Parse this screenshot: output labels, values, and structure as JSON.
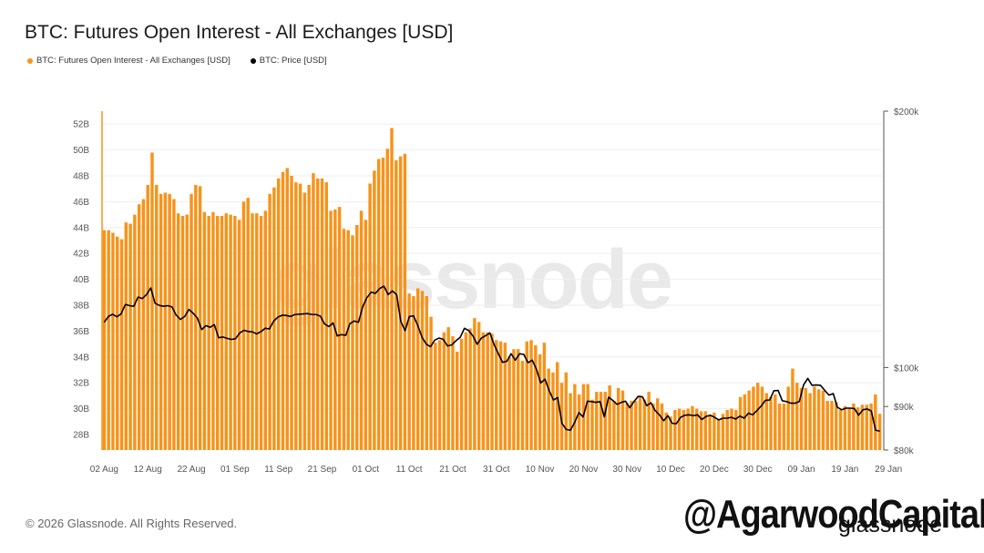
{
  "title": "BTC: Futures Open Interest - All Exchanges [USD]",
  "legend": {
    "oi_label": "BTC: Futures Open Interest - All Exchanges [USD]",
    "price_label": "BTC: Price [USD]"
  },
  "colors": {
    "oi": "#F7931A",
    "price": "#000000",
    "grid": "#eeeeee"
  },
  "footer": {
    "copyright": "© 2026 Glassnode. All Rights Reserved."
  },
  "watermark": "glassnode",
  "handle": "@AgarwoodCapital",
  "brand": "glassnode",
  "chart_data": {
    "type": "bar",
    "title": "BTC: Futures Open Interest - All Exchanges [USD]",
    "xlabel": "",
    "ylabel": "",
    "x_tick_labels": [
      "02 Aug",
      "12 Aug",
      "22 Aug",
      "01 Sep",
      "11 Sep",
      "21 Sep",
      "01 Oct",
      "11 Oct",
      "21 Oct",
      "31 Oct",
      "10 Nov",
      "20 Nov",
      "30 Nov",
      "10 Dec",
      "20 Dec",
      "30 Dec",
      "09 Jan",
      "19 Jan",
      "29 Jan"
    ],
    "y_left_ticks": [
      "28B",
      "30B",
      "32B",
      "34B",
      "36B",
      "38B",
      "40B",
      "42B",
      "44B",
      "46B",
      "48B",
      "50B",
      "52B"
    ],
    "y_right_ticks": [
      "$80k",
      "$90k",
      "$100k",
      "$200k"
    ],
    "ylim_left": [
      26.8,
      53.0
    ],
    "y_right_scale": "log",
    "ylim_right": [
      80000,
      200000
    ],
    "grid": true,
    "legend_position": "top-left",
    "series": [
      {
        "name": "BTC: Futures Open Interest - All Exchanges [USD]",
        "type": "bar",
        "unit": "B",
        "values": [
          43.8,
          43.8,
          43.6,
          43.3,
          43.1,
          44.4,
          44.3,
          45.0,
          45.8,
          46.2,
          47.3,
          49.8,
          47.3,
          46.6,
          46.7,
          46.6,
          46.2,
          45.1,
          44.9,
          45.0,
          46.6,
          47.3,
          47.2,
          45.2,
          44.9,
          45.2,
          44.9,
          44.9,
          45.1,
          45.0,
          44.9,
          44.6,
          46.0,
          46.3,
          45.1,
          45.1,
          44.9,
          45.3,
          46.6,
          47.1,
          47.8,
          48.3,
          48.6,
          48.0,
          47.5,
          47.4,
          46.7,
          47.3,
          48.2,
          47.8,
          47.8,
          47.5,
          45.3,
          45.4,
          45.6,
          43.9,
          43.8,
          43.4,
          44.2,
          45.3,
          44.6,
          47.4,
          48.4,
          49.3,
          49.4,
          50.1,
          51.7,
          49.2,
          49.5,
          49.7,
          38.9,
          38.7,
          39.3,
          39.1,
          38.7,
          37.1,
          35.1,
          35.3,
          35.9,
          36.3,
          35.6,
          34.4,
          35.4,
          35.9,
          36.2,
          37.0,
          36.7,
          35.9,
          35.9,
          35.8,
          35.3,
          35.2,
          35.1,
          34.0,
          34.6,
          34.6,
          33.7,
          35.2,
          35.3,
          34.9,
          34.2,
          35.1,
          33.1,
          32.8,
          33.6,
          32.0,
          32.8,
          31.2,
          31.9,
          31.1,
          31.9,
          31.9,
          30.7,
          31.3,
          31.3,
          31.3,
          31.8,
          30.6,
          31.6,
          31.4,
          30.4,
          30.6,
          30.6,
          30.9,
          30.7,
          31.3,
          30.4,
          30.8,
          30.4,
          29.7,
          29.4,
          29.9,
          30.0,
          29.9,
          30.0,
          30.2,
          30.0,
          29.8,
          29.8,
          29.5,
          29.7,
          29.2,
          29.6,
          29.9,
          30.0,
          29.9,
          30.9,
          31.1,
          31.4,
          31.7,
          32.0,
          31.7,
          31.2,
          30.9,
          31.1,
          30.4,
          30.4,
          31.7,
          33.1,
          32.0,
          31.6,
          31.6,
          31.2,
          31.7,
          31.5,
          31.4,
          30.6,
          30.6,
          30.5,
          29.9,
          30.2,
          30.0,
          30.4,
          30.1,
          30.3,
          30.3,
          30.4,
          31.1,
          29.6
        ]
      },
      {
        "name": "BTC: Price [USD]",
        "type": "line",
        "unit": "USD",
        "values": [
          113000,
          114800,
          115500,
          114700,
          115600,
          118600,
          118200,
          118000,
          121000,
          120500,
          121800,
          124000,
          119000,
          118300,
          118000,
          118200,
          117800,
          115200,
          113900,
          114800,
          117000,
          115800,
          114300,
          110800,
          112000,
          111500,
          112300,
          108400,
          108600,
          108200,
          107900,
          108100,
          109800,
          110600,
          110200,
          110100,
          109500,
          110200,
          111200,
          111000,
          113400,
          114600,
          115200,
          115100,
          114800,
          115400,
          115500,
          115600,
          115700,
          115400,
          115400,
          114900,
          112500,
          111700,
          112800,
          108900,
          109300,
          109100,
          112600,
          113400,
          113000,
          117900,
          120800,
          122600,
          122200,
          123800,
          124600,
          121800,
          123000,
          121800,
          113200,
          110500,
          114800,
          115000,
          112000,
          108500,
          106500,
          105800,
          107700,
          108300,
          107900,
          106000,
          106300,
          107500,
          108500,
          111200,
          110500,
          108900,
          106500,
          108300,
          109000,
          109800,
          106400,
          103800,
          101400,
          101700,
          103800,
          102000,
          103800,
          103600,
          101300,
          102000,
          99500,
          95900,
          96900,
          93900,
          91600,
          92200,
          86000,
          84600,
          84400,
          86200,
          88500,
          87500,
          91300,
          91200,
          91000,
          91200,
          87500,
          92300,
          91500,
          90500,
          91000,
          91300,
          89700,
          91200,
          92500,
          92400,
          90200,
          90900,
          89000,
          88000,
          86600,
          87800,
          86000,
          85900,
          87400,
          87900,
          88000,
          87800,
          88000,
          86900,
          87600,
          87900,
          87400,
          86800,
          87200,
          87200,
          87400,
          87000,
          87700,
          87200,
          88400,
          88000,
          89000,
          90100,
          91500,
          91600,
          93900,
          94000,
          91400,
          91200,
          90800,
          90800,
          91200,
          95400,
          97100,
          95300,
          95400,
          95300,
          94000,
          92800,
          93200,
          89800,
          89200,
          89600,
          89600,
          89500,
          87900,
          89200,
          89400,
          88900,
          84400,
          84200
        ]
      }
    ]
  }
}
